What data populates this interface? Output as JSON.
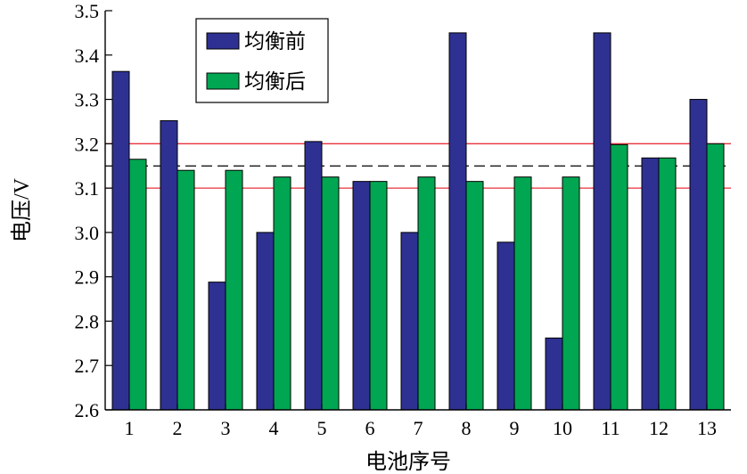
{
  "chart_data": {
    "type": "bar",
    "title": "",
    "xlabel": "电池序号",
    "ylabel": "电压/V",
    "categories": [
      "1",
      "2",
      "3",
      "4",
      "5",
      "6",
      "7",
      "8",
      "9",
      "10",
      "11",
      "12",
      "13"
    ],
    "series": [
      {
        "name": "均衡前",
        "color": "#2e3192",
        "values": [
          3.363,
          3.252,
          2.888,
          3.0,
          3.205,
          3.115,
          3.0,
          3.45,
          2.978,
          2.762,
          3.45,
          3.168,
          3.3
        ]
      },
      {
        "name": "均衡后",
        "color": "#00a651",
        "values": [
          3.165,
          3.14,
          3.14,
          3.125,
          3.125,
          3.115,
          3.125,
          3.115,
          3.125,
          3.125,
          3.198,
          3.168,
          3.2
        ]
      }
    ],
    "ylim": [
      2.6,
      3.5
    ],
    "yticks": [
      2.6,
      2.7,
      2.8,
      2.9,
      3.0,
      3.1,
      3.2,
      3.3,
      3.4,
      3.5
    ],
    "ytick_labels": [
      "2.6",
      "2.7",
      "2.8",
      "2.9",
      "3.0",
      "3.1",
      "3.2",
      "3.3",
      "3.4",
      "3.5"
    ],
    "reference_lines": [
      {
        "y": 3.2,
        "style": "solid",
        "color": "#e8323c"
      },
      {
        "y": 3.1,
        "style": "solid",
        "color": "#e8323c"
      },
      {
        "y": 3.15,
        "style": "dashed",
        "color": "#000000"
      }
    ],
    "legend_position": "top-left",
    "grid": false
  }
}
